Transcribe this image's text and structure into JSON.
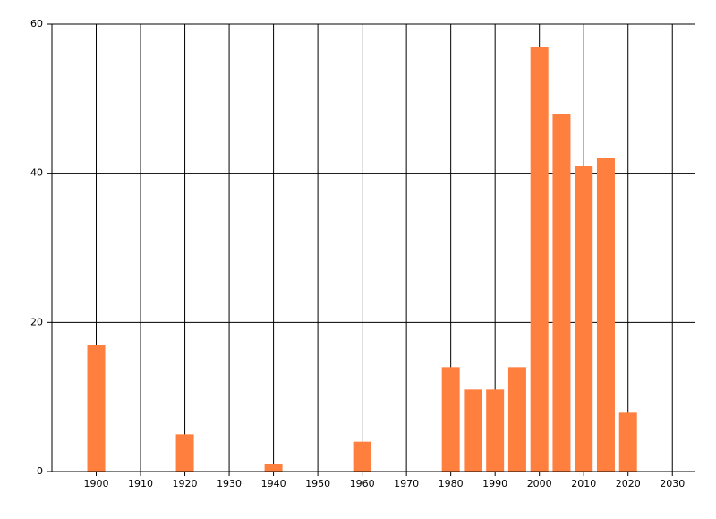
{
  "chart_data": {
    "type": "bar",
    "x": [
      1900,
      1920,
      1940,
      1960,
      1980,
      1985,
      1990,
      1995,
      2000,
      2005,
      2010,
      2015,
      2020
    ],
    "values": [
      17,
      5,
      1,
      4,
      14,
      11,
      11,
      14,
      57,
      48,
      41,
      42,
      8
    ],
    "color": "#ff7f3f",
    "xlim": [
      1890,
      2035
    ],
    "xticks": [
      1900,
      1910,
      1920,
      1930,
      1940,
      1950,
      1960,
      1970,
      1980,
      1990,
      2000,
      2010,
      2020,
      2030
    ],
    "ylim": [
      0,
      60
    ],
    "yticks": [
      0,
      20,
      40,
      60
    ],
    "grid": true
  }
}
